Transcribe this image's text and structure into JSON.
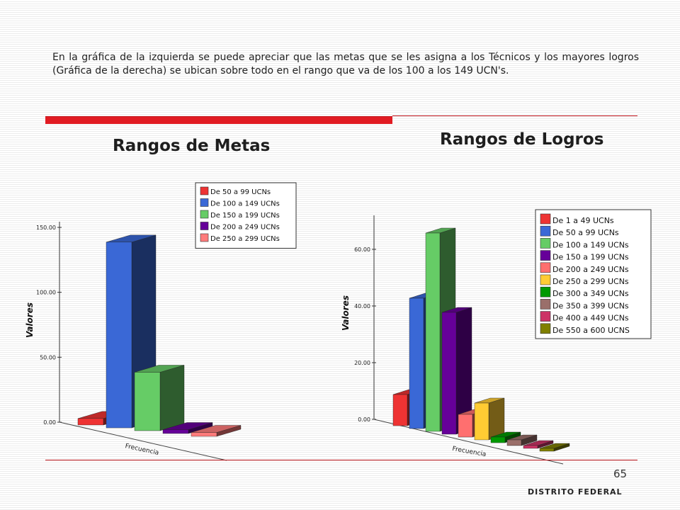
{
  "intro_text": "En la gráfica de la izquierda se puede apreciar que las metas que se les asigna a los Técnicos y los mayores logros (Gráfica de la derecha) se ubican sobre todo en el rango que va de los 100 a los 149 UCN's.",
  "page_number": "65",
  "footer": "DISTRITO FEDERAL",
  "chart_data": [
    {
      "type": "bar",
      "title": "Rangos de Metas",
      "ylabel": "Valores",
      "xlabel": "Frecuencia",
      "ylim": [
        0,
        150
      ],
      "yticks": [
        "0.00",
        "50.00",
        "100.00",
        "150.00"
      ],
      "legend_position": "top-right",
      "categories": [
        "De 50 a 99 UCNs",
        "De 100 a 149 UCNs",
        "De 150 a 199 UCNs",
        "De 200 a 249 UCNs",
        "De 250 a 299 UCNs"
      ],
      "values": [
        5,
        143,
        45,
        3,
        3
      ],
      "colors": [
        "#ee3333",
        "#3a68d6",
        "#66cc66",
        "#660099",
        "#ff7b7b"
      ]
    },
    {
      "type": "bar",
      "title": "Rangos de Logros",
      "ylabel": "Valores",
      "xlabel": "Frecuencia",
      "ylim": [
        0,
        70
      ],
      "yticks": [
        "0.00",
        "20.00",
        "40.00",
        "60.00"
      ],
      "legend_position": "top-right",
      "categories": [
        "De 1 a 49 UCNs",
        "De 50 a 99 UCNs",
        "De 100 a 149 UCNs",
        "De 150 a 199 UCNs",
        "De 200 a 249 UCNs",
        "De 250 a 299 UCNs",
        "De 300 a 349 UCNs",
        "De 350 a 399 UCNs",
        "De 400 a 449 UCNs",
        "De 550 a 600 UCNS"
      ],
      "values": [
        11,
        46,
        70,
        43,
        8,
        13,
        2,
        2,
        1,
        1
      ],
      "colors": [
        "#ee3333",
        "#3a68d6",
        "#66cc66",
        "#660099",
        "#ff6f6f",
        "#ffcc33",
        "#009900",
        "#9a6f6a",
        "#cc3366",
        "#808000"
      ]
    }
  ]
}
